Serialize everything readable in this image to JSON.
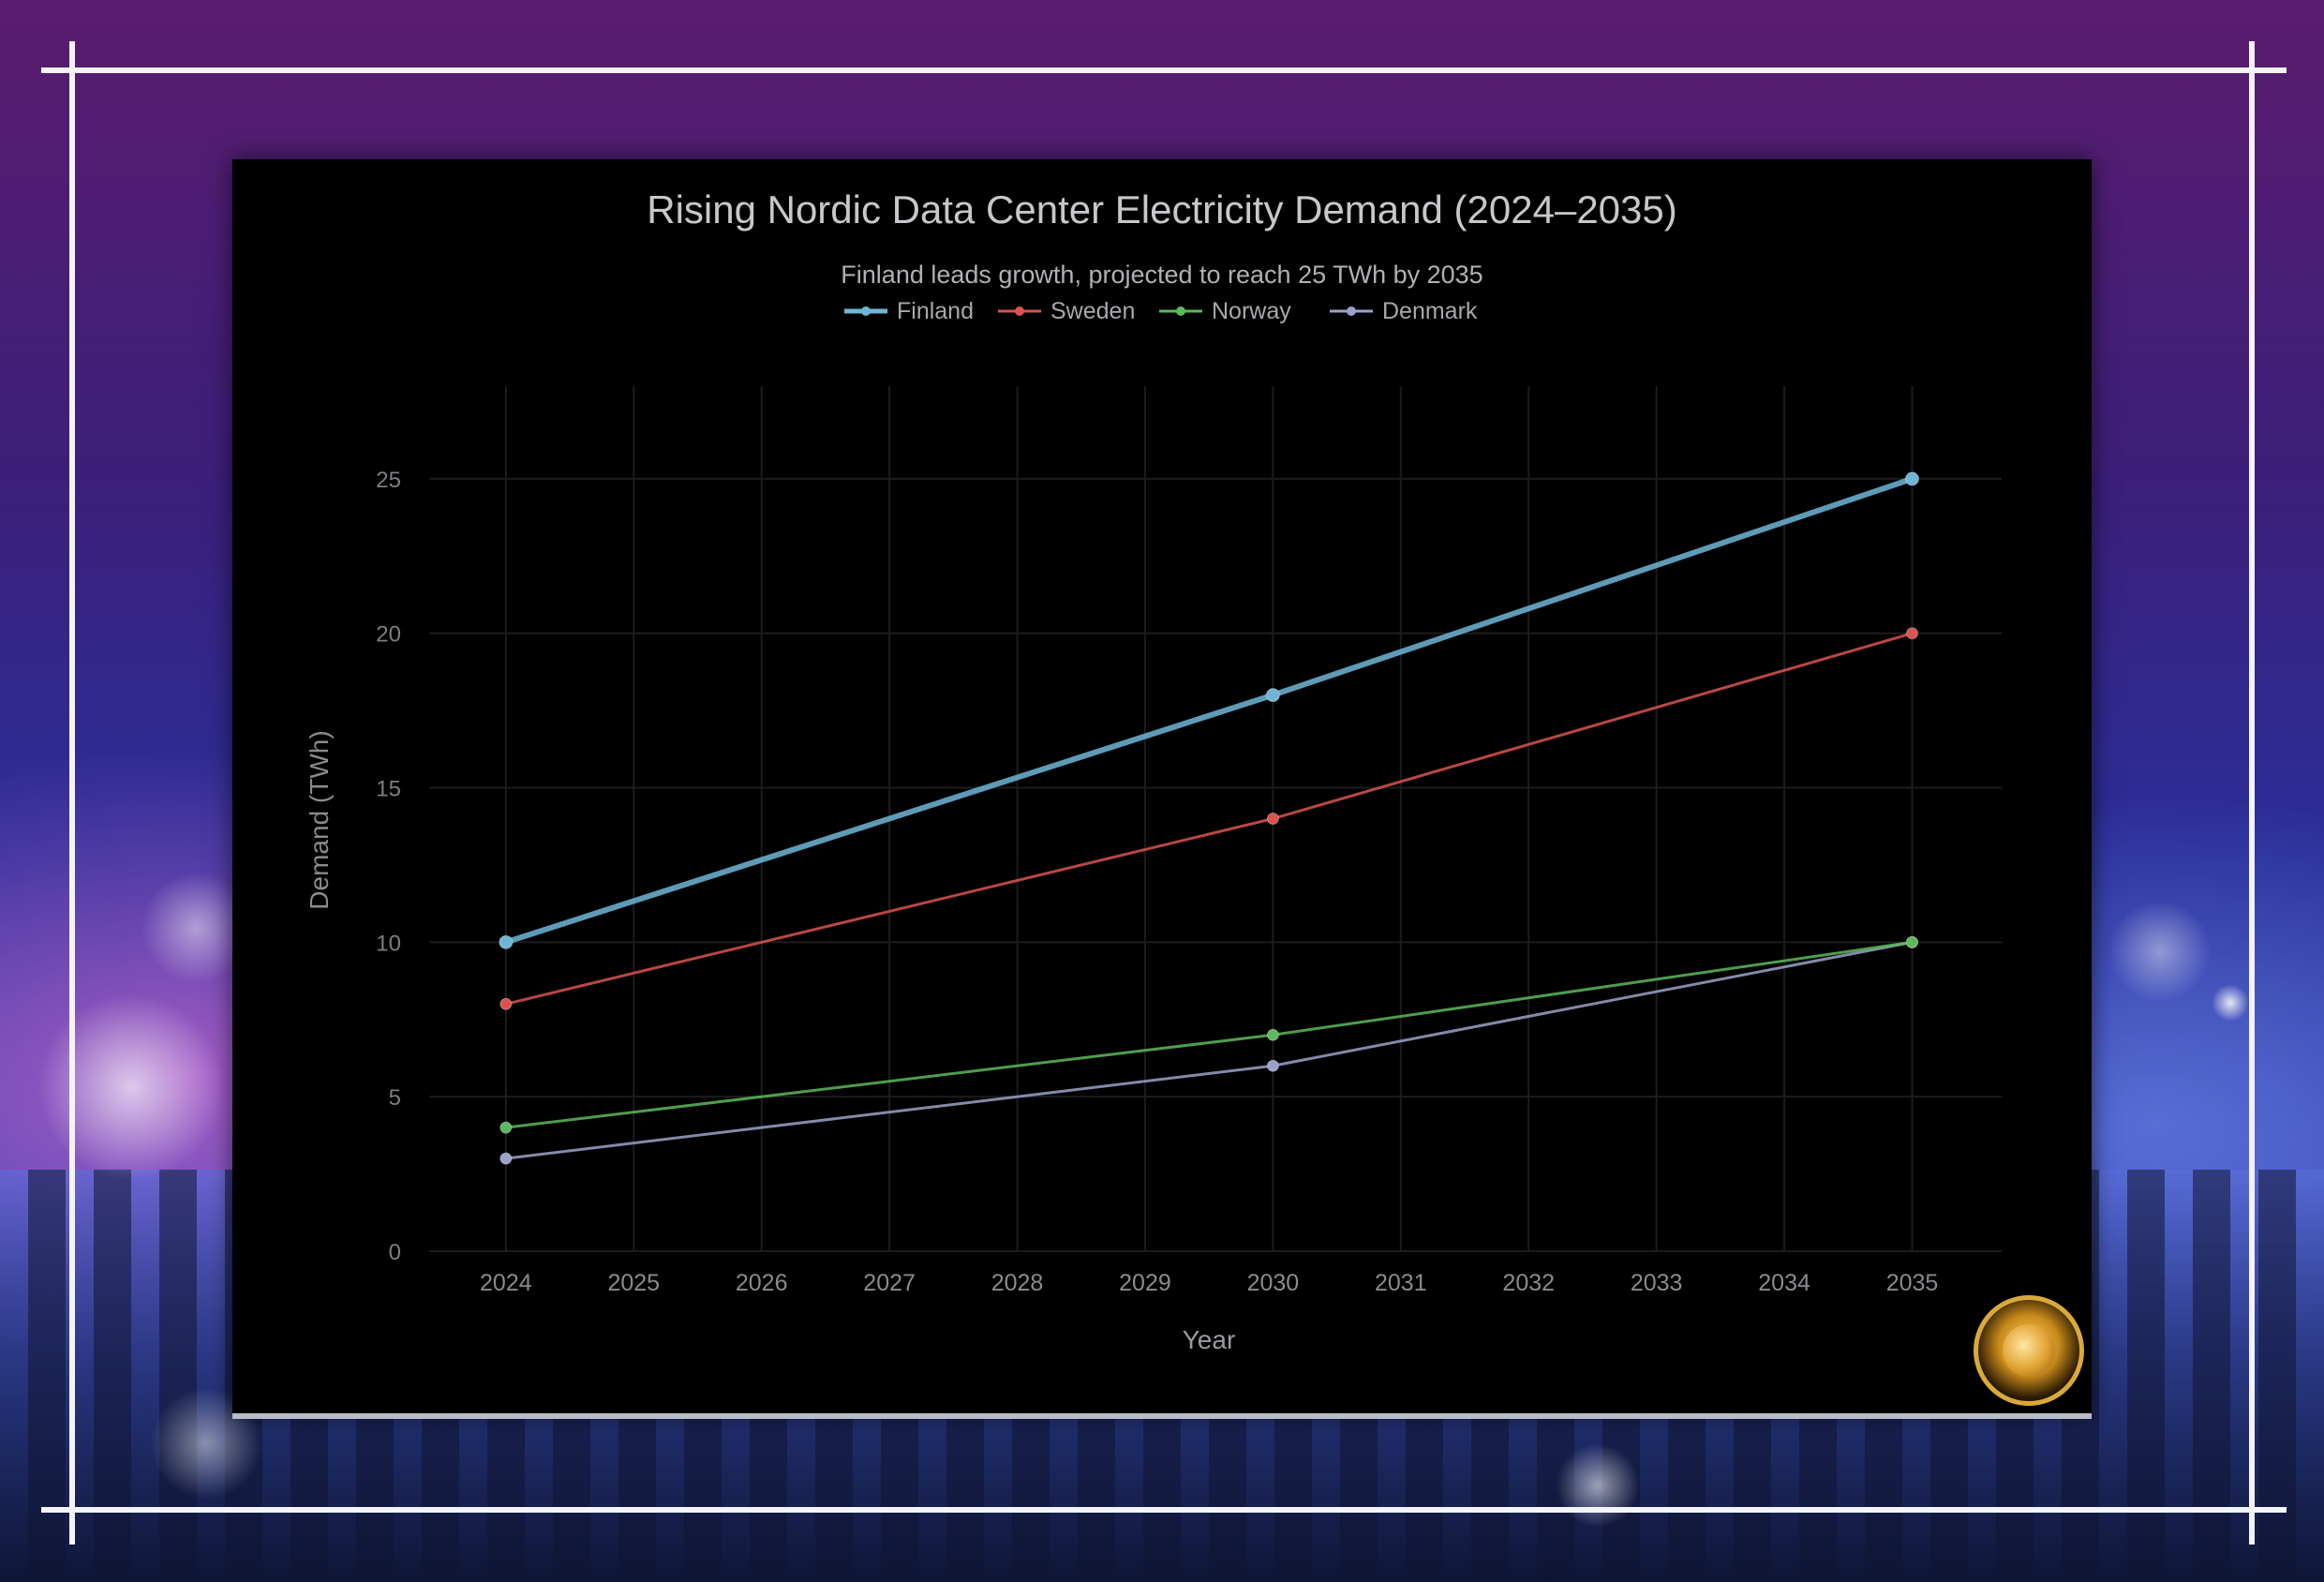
{
  "chart_data": {
    "type": "line",
    "title": "Rising Nordic Data Center Electricity Demand (2024–2035)",
    "subtitle": "Finland leads growth, projected to reach 25 TWh by 2035",
    "xlabel": "Year",
    "ylabel": "Demand (TWh)",
    "x": [
      2024,
      2030,
      2035
    ],
    "x_ticks": [
      "2024",
      "2025",
      "2026",
      "2027",
      "2028",
      "2029",
      "2030",
      "2031",
      "2032",
      "2033",
      "2034",
      "2035"
    ],
    "y_ticks": [
      "0",
      "5",
      "10",
      "15",
      "20",
      "25"
    ],
    "xlim": [
      2023.4,
      2035.7
    ],
    "ylim": [
      0,
      28
    ],
    "grid": true,
    "legend_position": "top",
    "series": [
      {
        "name": "Finland",
        "color": "#6fb6d6",
        "values": [
          10,
          18,
          25
        ]
      },
      {
        "name": "Sweden",
        "color": "#d9534f",
        "values": [
          8,
          14,
          20
        ]
      },
      {
        "name": "Norway",
        "color": "#5cb85c",
        "values": [
          4,
          7,
          10
        ]
      },
      {
        "name": "Denmark",
        "color": "#9aa2c8",
        "values": [
          3,
          6,
          10
        ]
      }
    ]
  }
}
